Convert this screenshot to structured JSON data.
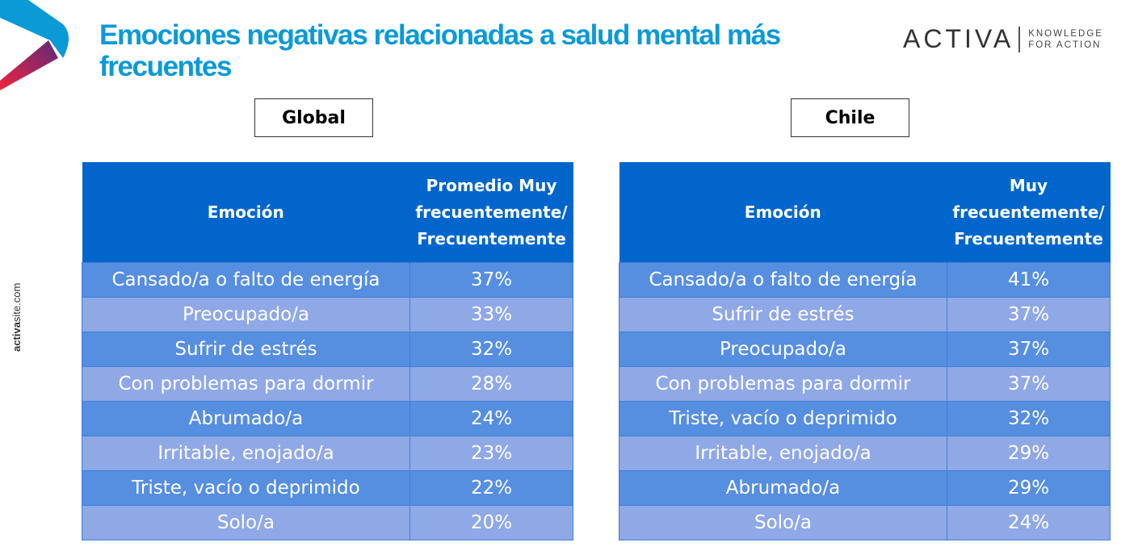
{
  "header": {
    "title": "Emociones negativas relacionadas a salud mental más frecuentes"
  },
  "brand": {
    "name": "ACTIVA",
    "tagline_1": "KNOWLEDGE",
    "tagline_2": "FOR ACTION"
  },
  "side": {
    "bold": "activa",
    "rest": "site.com"
  },
  "global": {
    "label": "Global",
    "col1": "Emoción",
    "col2": "Promedio Muy frecuentemente/ Frecuentemente",
    "rows": [
      {
        "emotion": "Cansado/a o falto de energía",
        "value": "37%"
      },
      {
        "emotion": "Preocupado/a",
        "value": "33%"
      },
      {
        "emotion": "Sufrir de estrés",
        "value": "32%"
      },
      {
        "emotion": "Con problemas para dormir",
        "value": "28%"
      },
      {
        "emotion": "Abrumado/a",
        "value": "24%"
      },
      {
        "emotion": "Irritable, enojado/a",
        "value": "23%"
      },
      {
        "emotion": "Triste, vacío o deprimido",
        "value": "22%"
      },
      {
        "emotion": "Solo/a",
        "value": "20%"
      }
    ]
  },
  "chile": {
    "label": "Chile",
    "col1": "Emoción",
    "col2": "Muy frecuentemente/ Frecuentemente",
    "rows": [
      {
        "emotion": "Cansado/a o falto de energía",
        "value": "41%"
      },
      {
        "emotion": "Sufrir de estrés",
        "value": "37%"
      },
      {
        "emotion": "Preocupado/a",
        "value": "37%"
      },
      {
        "emotion": "Con problemas para dormir",
        "value": "37%"
      },
      {
        "emotion": "Triste, vacío o deprimido",
        "value": "32%"
      },
      {
        "emotion": "Irritable, enojado/a",
        "value": "29%"
      },
      {
        "emotion": "Abrumado/a",
        "value": "29%"
      },
      {
        "emotion": "Solo/a",
        "value": "24%"
      }
    ]
  }
}
